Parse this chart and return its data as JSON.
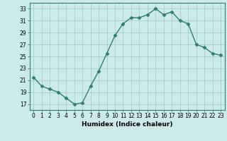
{
  "x": [
    0,
    1,
    2,
    3,
    4,
    5,
    6,
    7,
    8,
    9,
    10,
    11,
    12,
    13,
    14,
    15,
    16,
    17,
    18,
    19,
    20,
    21,
    22,
    23
  ],
  "y": [
    21.5,
    20.0,
    19.5,
    19.0,
    18.0,
    17.0,
    17.2,
    20.0,
    22.5,
    25.5,
    28.5,
    30.5,
    31.5,
    31.5,
    32.0,
    33.0,
    32.0,
    32.5,
    31.0,
    30.5,
    27.0,
    26.5,
    25.5,
    25.2
  ],
  "xlabel": "Humidex (Indice chaleur)",
  "ylabel": "",
  "xlim": [
    -0.5,
    23.5
  ],
  "ylim": [
    16,
    34
  ],
  "yticks": [
    17,
    19,
    21,
    23,
    25,
    27,
    29,
    31,
    33
  ],
  "xticks": [
    0,
    1,
    2,
    3,
    4,
    5,
    6,
    7,
    8,
    9,
    10,
    11,
    12,
    13,
    14,
    15,
    16,
    17,
    18,
    19,
    20,
    21,
    22,
    23
  ],
  "line_color": "#2e7d6e",
  "marker": "D",
  "marker_size": 2.5,
  "line_width": 1.0,
  "bg_color": "#cceaea",
  "grid_color": "#aacccc",
  "label_fontsize": 6.5,
  "tick_fontsize": 5.5
}
